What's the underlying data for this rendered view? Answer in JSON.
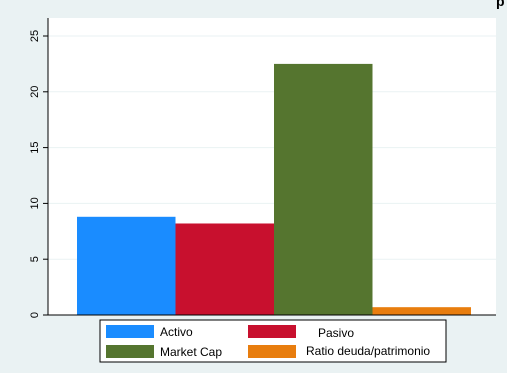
{
  "corner_text": "p",
  "colors": {
    "background": "#eaf2f3",
    "plot_background": "#ffffff",
    "grid": "#eaf2f3",
    "axis": "#000000"
  },
  "chart_data": {
    "type": "bar",
    "title": "",
    "xlabel": "",
    "ylabel": "",
    "ylim": [
      0,
      25
    ],
    "yticks": [
      0,
      5,
      10,
      15,
      20,
      25
    ],
    "grid": true,
    "legend_position": "bottom",
    "series": [
      {
        "name": "Activo",
        "value": 8.8,
        "color": "#1a8cff"
      },
      {
        "name": "Pasivo",
        "value": 8.2,
        "color": "#c8102e"
      },
      {
        "name": "Market Cap",
        "value": 22.5,
        "color": "#55752f"
      },
      {
        "name": "Ratio deuda/patrimonio",
        "value": 0.7,
        "color": "#e87d0e"
      }
    ]
  }
}
